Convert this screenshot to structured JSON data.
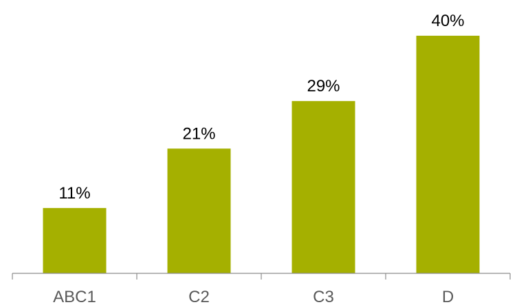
{
  "chart_data": {
    "type": "bar",
    "categories": [
      "ABC1",
      "C2",
      "C3",
      "D"
    ],
    "values": [
      11,
      21,
      29,
      40
    ],
    "value_labels": [
      "11%",
      "21%",
      "29%",
      "40%"
    ],
    "title": "",
    "xlabel": "",
    "ylabel": "",
    "ylim": [
      0,
      40
    ],
    "grid": false,
    "legend": "none",
    "bar_color": "#a5b000"
  }
}
